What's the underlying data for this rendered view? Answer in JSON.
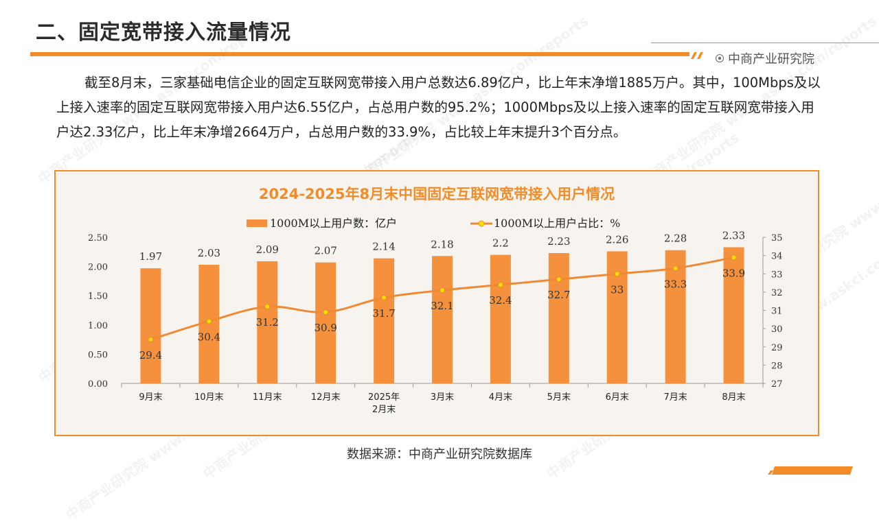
{
  "header": {
    "title": "二、固定宽带接入流量情况",
    "brand": "中商产业研究院",
    "brand_icon": "circle-dot-icon"
  },
  "paragraph": "截至8月末，三家基础电信企业的固定互联网宽带接入用户总数达6.89亿户，比上年末净增1885万户。其中，100Mbps及以上接入速率的固定互联网宽带接入用户达6.55亿户，占总用户数的95.2%；1000Mbps及以上接入速率的固定互联网宽带接入用户达2.33亿户，比上年末净增2664万户，占总用户数的33.9%，占比较上年末提升3个百分点。",
  "source": "数据来源：中商产业研究院数据库",
  "colors": {
    "accent": "#f28c28",
    "bar": "#f5913c",
    "line": "#ef8a34",
    "marker": "#f2e000"
  },
  "chart_data": {
    "type": "bar+line",
    "title": "2024-2025年8月末中国固定互联网宽带接入用户情况",
    "categories": [
      "9月末",
      "10月末",
      "11月末",
      "12月末",
      "2025年\n2月末",
      "3月末",
      "4月末",
      "5月末",
      "6月末",
      "7月末",
      "8月末"
    ],
    "series": [
      {
        "name": "1000M以上用户数：亿户",
        "type": "bar",
        "axis": "left",
        "values": [
          1.97,
          2.03,
          2.09,
          2.07,
          2.14,
          2.18,
          2.2,
          2.23,
          2.26,
          2.28,
          2.33
        ],
        "labels": [
          "1.97",
          "2.03",
          "2.09",
          "2.07",
          "2.14",
          "2.18",
          "2.2",
          "2.23",
          "2.26",
          "2.28",
          "2.33"
        ]
      },
      {
        "name": "1000M以上用户占比：%",
        "type": "line",
        "axis": "right",
        "values": [
          29.4,
          30.4,
          31.2,
          30.9,
          31.7,
          32.1,
          32.4,
          32.7,
          33,
          33.3,
          33.9
        ],
        "labels": [
          "29.4",
          "30.4",
          "31.2",
          "30.9",
          "31.7",
          "32.1",
          "32.4",
          "32.7",
          "33",
          "33.3",
          "33.9"
        ]
      }
    ],
    "y_left": {
      "min": 0,
      "max": 2.5,
      "ticks": [
        "0.00",
        "0.50",
        "1.00",
        "1.50",
        "2.00",
        "2.50"
      ]
    },
    "y_right": {
      "min": 27,
      "max": 35,
      "ticks": [
        "27",
        "28",
        "29",
        "30",
        "31",
        "32",
        "33",
        "34",
        "35"
      ]
    },
    "legend_position": "top-center"
  },
  "watermark_text": "中商产业研究院 www.askci.com/reports"
}
